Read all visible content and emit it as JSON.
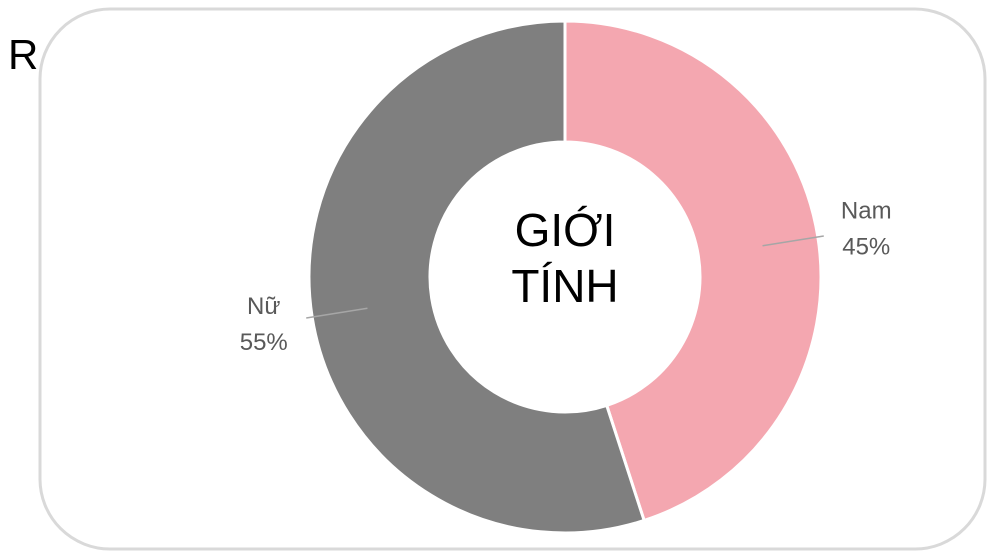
{
  "fragment": "R",
  "chart_data": {
    "type": "donut",
    "title": "GIỚI TÍNH",
    "categories": [
      "Nam",
      "Nữ"
    ],
    "values": [
      45,
      55
    ],
    "value_labels": [
      "45%",
      "55%"
    ],
    "colors": [
      "#f4a7b0",
      "#7f7f7f"
    ]
  }
}
